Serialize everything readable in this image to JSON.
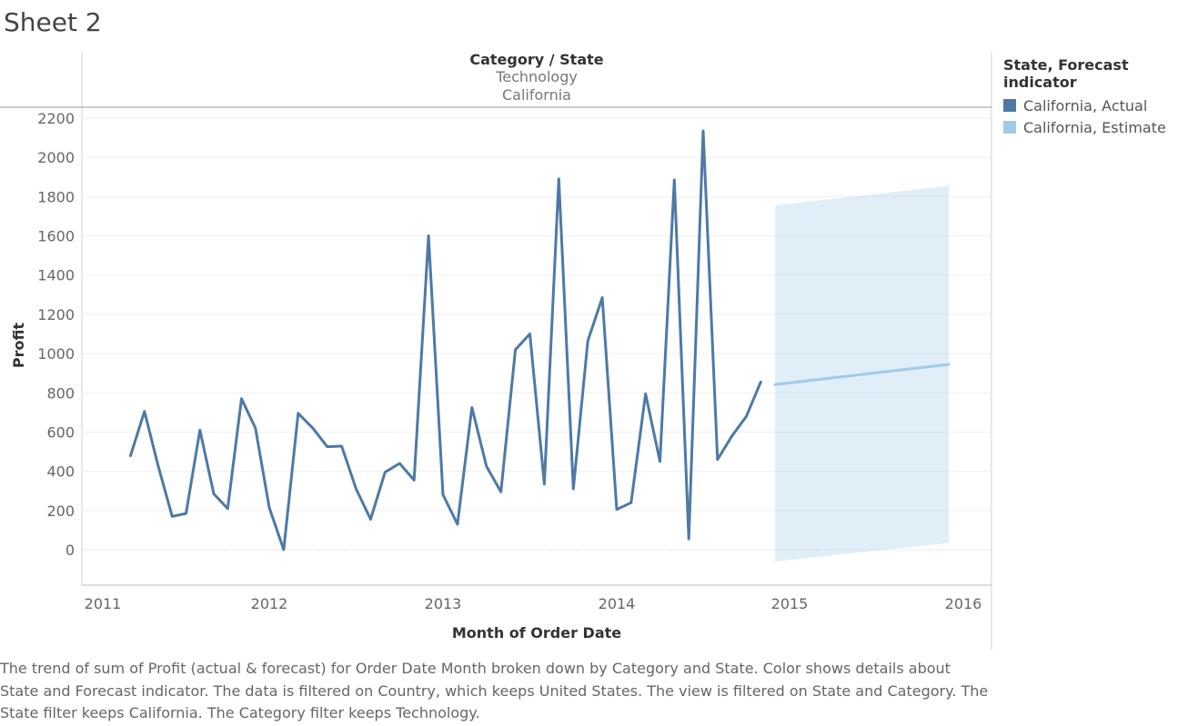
{
  "sheet_title": "Sheet 2",
  "header": {
    "label": "Category  /  State",
    "category": "Technology",
    "state": "California"
  },
  "legend": {
    "title": "State, Forecast indicator",
    "items": [
      {
        "label": "California, Actual",
        "color": "#4e79a7"
      },
      {
        "label": "California, Estimate",
        "color": "#a0cbe8"
      }
    ]
  },
  "caption": "The trend of sum of Profit (actual & forecast)  for Order Date Month broken down by Category and State.  Color shows details about State and Forecast indicator. The data is filtered on Country, which keeps United States. The view is filtered on State and Category. The State filter keeps California. The Category filter keeps Technology.",
  "chart_data": {
    "type": "line",
    "xlabel": "Month of Order Date",
    "ylabel": "Profit",
    "x_ticks": [
      "2011",
      "2012",
      "2013",
      "2014",
      "2015",
      "2016"
    ],
    "y_ticks": [
      "2200",
      "2000",
      "1800",
      "1600",
      "1400",
      "1200",
      "1000",
      "800",
      "600",
      "400",
      "200",
      "0"
    ],
    "ylim": [
      -180,
      2260
    ],
    "grid": true,
    "series": [
      {
        "name": "California, Actual",
        "color": "#4e79a7",
        "points": [
          [
            "2011-03",
            480
          ],
          [
            "2011-04",
            705
          ],
          [
            "2011-05",
            425
          ],
          [
            "2011-06",
            170
          ],
          [
            "2011-07",
            185
          ],
          [
            "2011-08",
            610
          ],
          [
            "2011-09",
            285
          ],
          [
            "2011-10",
            210
          ],
          [
            "2011-11",
            770
          ],
          [
            "2011-12",
            620
          ],
          [
            "2012-01",
            215
          ],
          [
            "2012-02",
            0
          ],
          [
            "2012-03",
            695
          ],
          [
            "2012-04",
            620
          ],
          [
            "2012-05",
            525
          ],
          [
            "2012-06",
            528
          ],
          [
            "2012-07",
            310
          ],
          [
            "2012-08",
            155
          ],
          [
            "2012-09",
            395
          ],
          [
            "2012-10",
            440
          ],
          [
            "2012-11",
            355
          ],
          [
            "2012-12",
            1600
          ],
          [
            "2013-01",
            280
          ],
          [
            "2013-02",
            130
          ],
          [
            "2013-03",
            725
          ],
          [
            "2013-04",
            425
          ],
          [
            "2013-05",
            295
          ],
          [
            "2013-06",
            1020
          ],
          [
            "2013-07",
            1100
          ],
          [
            "2013-08",
            335
          ],
          [
            "2013-09",
            1890
          ],
          [
            "2013-10",
            310
          ],
          [
            "2013-11",
            1065
          ],
          [
            "2013-12",
            1285
          ],
          [
            "2014-01",
            205
          ],
          [
            "2014-02",
            240
          ],
          [
            "2014-03",
            795
          ],
          [
            "2014-04",
            450
          ],
          [
            "2014-05",
            1885
          ],
          [
            "2014-06",
            55
          ],
          [
            "2014-07",
            2135
          ],
          [
            "2014-08",
            460
          ],
          [
            "2014-09",
            580
          ],
          [
            "2014-10",
            680
          ],
          [
            "2014-11",
            855
          ]
        ]
      },
      {
        "name": "California, Estimate",
        "color": "#a0cbe8",
        "points": [
          [
            "2014-12",
            842
          ],
          [
            "2015-12",
            945
          ]
        ],
        "band": [
          {
            "x": "2014-12",
            "lower": -60,
            "upper": 1755
          },
          {
            "x": "2015-12",
            "lower": 35,
            "upper": 1855
          }
        ]
      }
    ]
  }
}
